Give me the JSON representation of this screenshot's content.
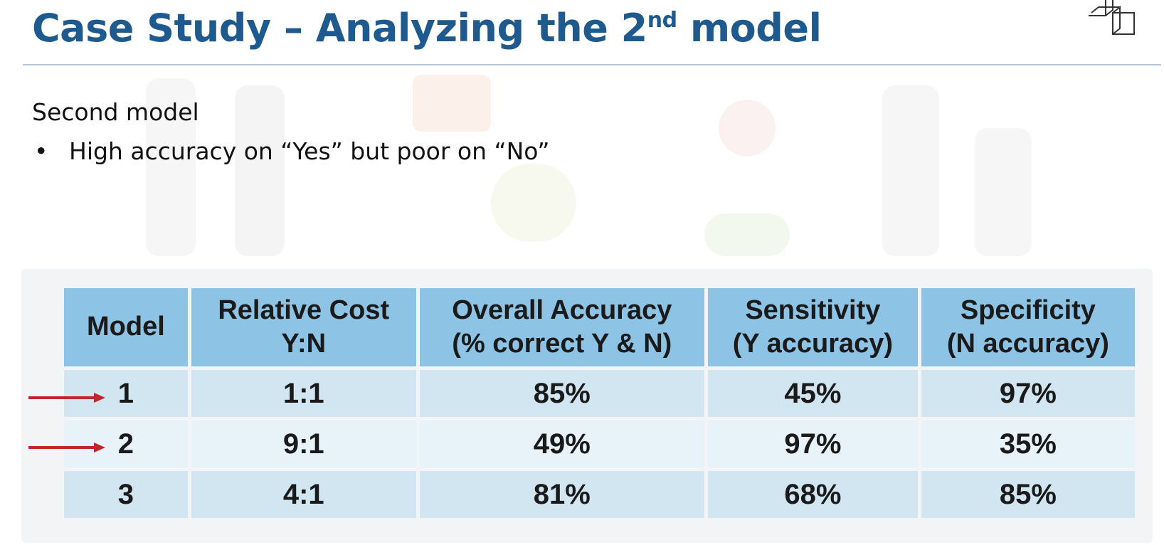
{
  "slide": {
    "title_main": "Case Study – Analyzing the 2",
    "title_sup": "nd",
    "title_end": " model",
    "subheading": "Second model",
    "bullet_char": "•",
    "bullet_text": "High accuracy on “Yes” but poor on “No”"
  },
  "table": {
    "headers": [
      {
        "line1": "Model",
        "line2": ""
      },
      {
        "line1": "Relative Cost",
        "line2": "Y:N"
      },
      {
        "line1": "Overall Accuracy",
        "line2": "(% correct Y & N)"
      },
      {
        "line1": "Sensitivity",
        "line2": "(Y accuracy)"
      },
      {
        "line1": "Specificity",
        "line2": "(N accuracy)"
      }
    ],
    "rows": [
      {
        "model": "1",
        "cost": "1:1",
        "overall": "85%",
        "sensitivity": "45%",
        "specificity": "97%",
        "arrow": true
      },
      {
        "model": "2",
        "cost": "9:1",
        "overall": "49%",
        "sensitivity": "97%",
        "specificity": "35%",
        "arrow": true
      },
      {
        "model": "3",
        "cost": "4:1",
        "overall": "81%",
        "sensitivity": "68%",
        "specificity": "85%",
        "arrow": false
      }
    ]
  },
  "colors": {
    "title": "#1f5a8f",
    "header_fill": "#8dc3e4",
    "row_dark": "#d2e6f2",
    "row_light": "#e8f2f9",
    "arrow": "#c0262d"
  },
  "icons": {
    "corner": "cube-icon",
    "row_pointer": "arrow-right-icon"
  }
}
